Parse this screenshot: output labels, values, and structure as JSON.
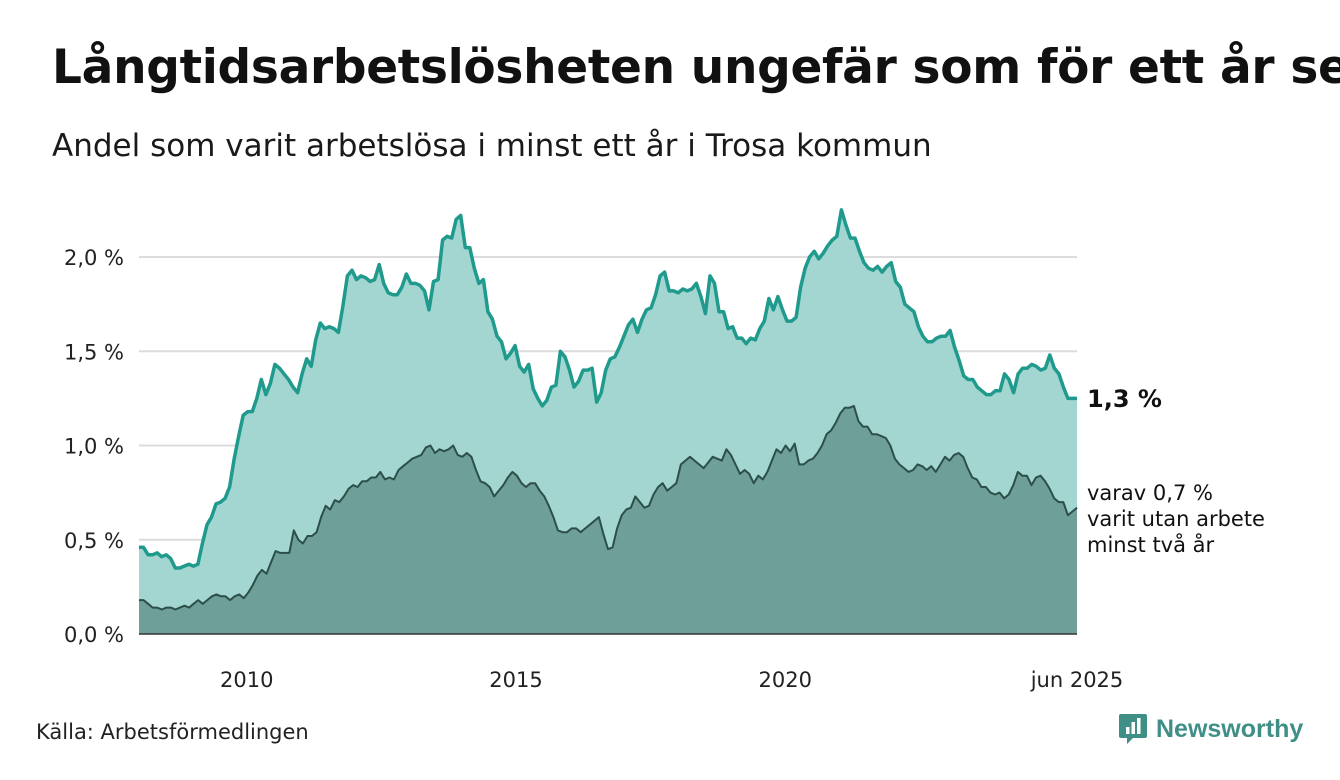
{
  "title": "Långtidsarbetslösheten ungefär som för ett år sen",
  "subtitle": "Andel som varit arbetslösa i minst ett år i Trosa kommun",
  "source": "Källa: Arbetsförmedlingen",
  "brand": {
    "name": "Newsworthy",
    "icon": "newsworthy-logo-icon"
  },
  "colors": {
    "area_one_year": "#a3d6d1",
    "line_one_year": "#1f9a8c",
    "area_two_years": "#6e9f98",
    "line_two_years": "#2c4f4a",
    "grid": "#dcdcdc",
    "brand": "#3f8f87"
  },
  "chart_data": {
    "type": "area",
    "x_start": "2008-01",
    "x_end": "2025-06",
    "x_interval": "monthly",
    "xticks": [
      {
        "x": "2010-01",
        "label": "2010"
      },
      {
        "x": "2015-01",
        "label": "2015"
      },
      {
        "x": "2020-01",
        "label": "2020"
      },
      {
        "x": "2025-06",
        "label": "jun 2025"
      }
    ],
    "yticks": [
      {
        "value": 0.0,
        "label": "0,0 %"
      },
      {
        "value": 0.5,
        "label": "0,5 %"
      },
      {
        "value": 1.0,
        "label": "1,0 %"
      },
      {
        "value": 1.5,
        "label": "1,5 %"
      },
      {
        "value": 2.0,
        "label": "2,0 %"
      }
    ],
    "ylim": [
      0,
      2.3
    ],
    "grid": true,
    "series": [
      {
        "key": "one_year",
        "values": [
          0.46,
          0.46,
          0.42,
          0.42,
          0.43,
          0.41,
          0.42,
          0.4,
          0.35,
          0.35,
          0.36,
          0.37,
          0.36,
          0.37,
          0.48,
          0.58,
          0.62,
          0.69,
          0.7,
          0.72,
          0.78,
          0.93,
          1.05,
          1.16,
          1.18,
          1.18,
          1.25,
          1.35,
          1.27,
          1.33,
          1.43,
          1.41,
          1.38,
          1.35,
          1.31,
          1.28,
          1.38,
          1.46,
          1.42,
          1.56,
          1.65,
          1.62,
          1.63,
          1.62,
          1.6,
          1.74,
          1.9,
          1.93,
          1.88,
          1.9,
          1.89,
          1.87,
          1.88,
          1.96,
          1.86,
          1.81,
          1.8,
          1.8,
          1.84,
          1.91,
          1.86,
          1.86,
          1.85,
          1.82,
          1.72,
          1.87,
          1.88,
          2.09,
          2.11,
          2.1,
          2.2,
          2.22,
          2.05,
          2.05,
          1.94,
          1.86,
          1.88,
          1.71,
          1.67,
          1.58,
          1.55,
          1.46,
          1.49,
          1.53,
          1.42,
          1.39,
          1.43,
          1.3,
          1.25,
          1.21,
          1.24,
          1.31,
          1.32,
          1.5,
          1.47,
          1.4,
          1.31,
          1.34,
          1.4,
          1.4,
          1.41,
          1.23,
          1.28,
          1.4,
          1.46,
          1.47,
          1.52,
          1.58,
          1.64,
          1.67,
          1.6,
          1.67,
          1.72,
          1.73,
          1.8,
          1.9,
          1.92,
          1.82,
          1.82,
          1.81,
          1.83,
          1.82,
          1.83,
          1.86,
          1.79,
          1.7,
          1.9,
          1.86,
          1.71,
          1.71,
          1.62,
          1.63,
          1.57,
          1.57,
          1.54,
          1.57,
          1.56,
          1.62,
          1.66,
          1.78,
          1.72,
          1.79,
          1.72,
          1.66,
          1.66,
          1.68,
          1.84,
          1.94,
          2.0,
          2.03,
          1.99,
          2.02,
          2.06,
          2.09,
          2.11,
          2.25,
          2.17,
          2.1,
          2.1,
          2.03,
          1.97,
          1.94,
          1.93,
          1.95,
          1.92,
          1.95,
          1.97,
          1.87,
          1.84,
          1.75,
          1.73,
          1.71,
          1.63,
          1.58,
          1.55,
          1.55,
          1.57,
          1.58,
          1.58,
          1.61,
          1.52,
          1.45,
          1.37,
          1.35,
          1.35,
          1.31,
          1.29,
          1.27,
          1.27,
          1.29,
          1.29,
          1.38,
          1.35,
          1.28,
          1.38,
          1.41,
          1.41,
          1.43,
          1.42,
          1.4,
          1.41,
          1.48,
          1.41,
          1.38,
          1.31,
          1.25,
          1.25,
          1.25
        ]
      },
      {
        "key": "two_years",
        "values": [
          0.18,
          0.18,
          0.16,
          0.14,
          0.14,
          0.13,
          0.14,
          0.14,
          0.13,
          0.14,
          0.15,
          0.14,
          0.16,
          0.18,
          0.16,
          0.18,
          0.2,
          0.21,
          0.2,
          0.2,
          0.18,
          0.2,
          0.21,
          0.19,
          0.22,
          0.26,
          0.31,
          0.34,
          0.32,
          0.38,
          0.44,
          0.43,
          0.43,
          0.43,
          0.55,
          0.5,
          0.48,
          0.52,
          0.52,
          0.54,
          0.62,
          0.68,
          0.66,
          0.71,
          0.7,
          0.73,
          0.77,
          0.79,
          0.78,
          0.81,
          0.81,
          0.83,
          0.83,
          0.86,
          0.82,
          0.83,
          0.82,
          0.87,
          0.89,
          0.91,
          0.93,
          0.94,
          0.95,
          0.99,
          1.0,
          0.96,
          0.98,
          0.97,
          0.98,
          1.0,
          0.95,
          0.94,
          0.96,
          0.94,
          0.87,
          0.81,
          0.8,
          0.78,
          0.73,
          0.76,
          0.79,
          0.83,
          0.86,
          0.84,
          0.8,
          0.78,
          0.8,
          0.8,
          0.76,
          0.73,
          0.68,
          0.62,
          0.55,
          0.54,
          0.54,
          0.56,
          0.56,
          0.54,
          0.56,
          0.58,
          0.6,
          0.62,
          0.53,
          0.45,
          0.46,
          0.56,
          0.63,
          0.66,
          0.67,
          0.73,
          0.7,
          0.67,
          0.68,
          0.74,
          0.78,
          0.8,
          0.76,
          0.78,
          0.8,
          0.9,
          0.92,
          0.94,
          0.92,
          0.9,
          0.88,
          0.91,
          0.94,
          0.93,
          0.92,
          0.98,
          0.95,
          0.9,
          0.85,
          0.87,
          0.85,
          0.8,
          0.84,
          0.82,
          0.86,
          0.92,
          0.98,
          0.96,
          1.0,
          0.97,
          1.01,
          0.9,
          0.9,
          0.92,
          0.93,
          0.96,
          1.0,
          1.06,
          1.08,
          1.12,
          1.17,
          1.2,
          1.2,
          1.21,
          1.13,
          1.1,
          1.1,
          1.06,
          1.06,
          1.05,
          1.04,
          1.0,
          0.93,
          0.9,
          0.88,
          0.86,
          0.87,
          0.9,
          0.89,
          0.87,
          0.89,
          0.86,
          0.9,
          0.94,
          0.92,
          0.95,
          0.96,
          0.94,
          0.88,
          0.83,
          0.82,
          0.78,
          0.78,
          0.75,
          0.74,
          0.75,
          0.72,
          0.74,
          0.79,
          0.86,
          0.84,
          0.84,
          0.79,
          0.83,
          0.84,
          0.81,
          0.77,
          0.72,
          0.7,
          0.7,
          0.63,
          0.65,
          0.67
        ]
      }
    ],
    "annotations": {
      "one_year_end_label": "1,3 %",
      "two_years_end_label": [
        "varav 0,7 %",
        "varit utan arbete",
        "minst två år"
      ]
    }
  }
}
